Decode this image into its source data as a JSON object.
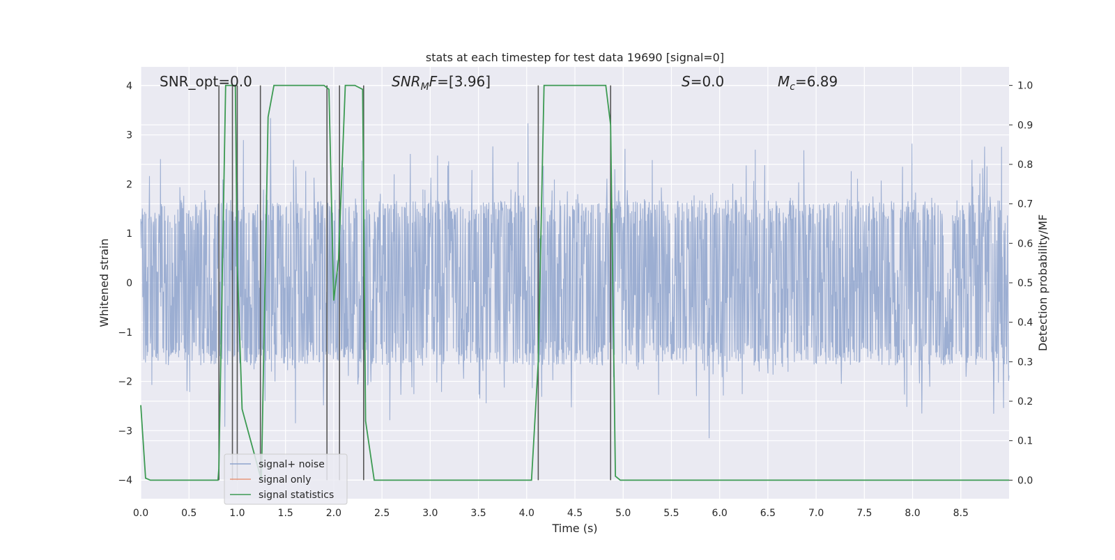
{
  "chart_data": {
    "type": "line",
    "title": "stats at each timestep for test data 19690 [signal=0]",
    "xlabel": "Time (s)",
    "ylabel_left": "Whitened strain",
    "ylabel_right": "Detection probability/MF",
    "xlim": [
      0.0,
      9.0
    ],
    "ylim_left": [
      -4.38,
      4.38
    ],
    "ylim_right": [
      -0.047,
      1.047
    ],
    "x_ticks": [
      "0.0",
      "0.5",
      "1.0",
      "1.5",
      "2.0",
      "2.5",
      "3.0",
      "3.5",
      "4.0",
      "4.5",
      "5.0",
      "5.5",
      "6.0",
      "6.5",
      "7.0",
      "7.5",
      "8.0",
      "8.5"
    ],
    "y_ticks_left": [
      "−4",
      "−3",
      "−2",
      "−1",
      "0",
      "1",
      "2",
      "3",
      "4"
    ],
    "y_ticks_right": [
      "0.0",
      "0.1",
      "0.2",
      "0.3",
      "0.4",
      "0.5",
      "0.6",
      "0.7",
      "0.8",
      "0.9",
      "1.0"
    ],
    "grid": true,
    "legend_position": "bottom-left",
    "annotations": [
      {
        "id": "snr_opt",
        "text": "SNR_opt=0.0"
      },
      {
        "id": "snr_mf",
        "prefix": "SNR",
        "sub": "M",
        "suffix": "F=[3.96]"
      },
      {
        "id": "s_stat",
        "prefix": "S",
        "suffix": "=0.0"
      },
      {
        "id": "mc",
        "prefix": "M",
        "sub": "c",
        "suffix": "=6.89"
      }
    ],
    "series": [
      {
        "name": "signal+ noise",
        "color": "#8ea3cd",
        "kind": "noise",
        "envelope": {
          "core": 1.6,
          "spikes_max": 3.9,
          "x_range": [
            0.0,
            9.0
          ]
        }
      },
      {
        "name": "signal only",
        "color": "#e8967a",
        "values": []
      },
      {
        "name": "signal statistics",
        "color": "#3c9a52",
        "x": [
          0.0,
          0.05,
          0.1,
          0.8,
          0.81,
          0.88,
          0.98,
          1.0,
          1.05,
          1.25,
          1.32,
          1.38,
          1.9,
          1.95,
          2.0,
          2.05,
          2.12,
          2.22,
          2.3,
          2.33,
          2.42,
          4.05,
          4.12,
          4.18,
          4.82,
          4.87,
          4.92,
          4.97,
          9.0
        ],
        "values": [
          0.19,
          0.005,
          0.0,
          0.0,
          0.03,
          1.0,
          1.0,
          0.55,
          0.18,
          0.0,
          0.92,
          1.0,
          1.0,
          0.99,
          0.455,
          0.56,
          1.0,
          1.0,
          0.99,
          0.15,
          0.0,
          0.0,
          0.3,
          1.0,
          1.0,
          0.9,
          0.01,
          0.0,
          0.0
        ]
      }
    ],
    "vertical_markers": [
      0.81,
      0.95,
      1.0,
      1.24,
      1.93,
      2.06,
      2.31,
      4.12,
      4.87
    ]
  }
}
